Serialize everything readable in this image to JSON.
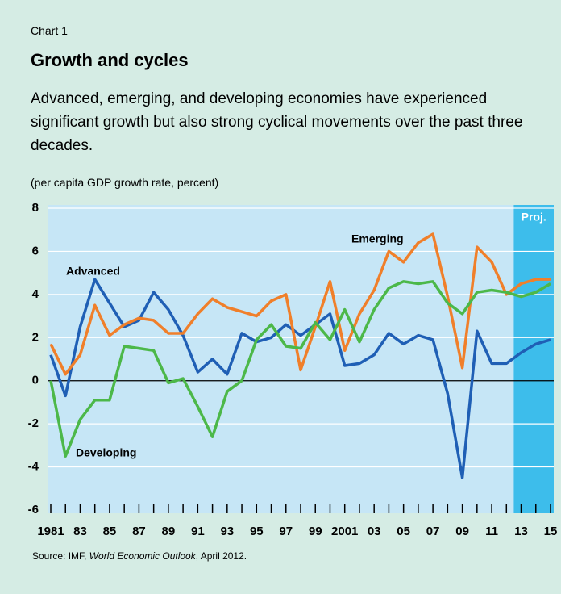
{
  "chart_data": {
    "type": "line",
    "kicker": "Chart 1",
    "title": "Growth and cycles",
    "subtitle": "Advanced, emerging, and developing economies have experienced significant growth but also strong cyclical movements over the past three decades.",
    "y_label": "(per capita GDP growth rate, percent)",
    "source": [
      "Source: IMF, ",
      "World Economic Outlook",
      ", April 2012."
    ],
    "projection_label": "Proj.",
    "projection_start": 2013,
    "x": [
      1981,
      1982,
      1983,
      1984,
      1985,
      1986,
      1987,
      1988,
      1989,
      1990,
      1991,
      1992,
      1993,
      1994,
      1995,
      1996,
      1997,
      1998,
      1999,
      2000,
      2001,
      2002,
      2003,
      2004,
      2005,
      2006,
      2007,
      2008,
      2009,
      2010,
      2011,
      2012,
      2013,
      2014,
      2015
    ],
    "xlim": [
      1981,
      2015
    ],
    "xticks": [
      {
        "value": 1981,
        "label": "1981"
      },
      {
        "value": 1983,
        "label": "83"
      },
      {
        "value": 1985,
        "label": "85"
      },
      {
        "value": 1987,
        "label": "87"
      },
      {
        "value": 1989,
        "label": "89"
      },
      {
        "value": 1991,
        "label": "91"
      },
      {
        "value": 1993,
        "label": "93"
      },
      {
        "value": 1995,
        "label": "95"
      },
      {
        "value": 1997,
        "label": "97"
      },
      {
        "value": 1999,
        "label": "99"
      },
      {
        "value": 2001,
        "label": "2001"
      },
      {
        "value": 2003,
        "label": "03"
      },
      {
        "value": 2005,
        "label": "05"
      },
      {
        "value": 2007,
        "label": "07"
      },
      {
        "value": 2009,
        "label": "09"
      },
      {
        "value": 2011,
        "label": "11"
      },
      {
        "value": 2013,
        "label": "13"
      },
      {
        "value": 2015,
        "label": "15"
      }
    ],
    "ylim": [
      -6,
      8
    ],
    "yticks": [
      -6,
      -4,
      -2,
      0,
      2,
      4,
      6,
      8
    ],
    "grid": true,
    "series": [
      {
        "name": "Advanced",
        "color": "#1f5fb5",
        "values": [
          1.2,
          -0.7,
          2.5,
          4.7,
          3.6,
          2.5,
          2.8,
          4.1,
          3.3,
          2.1,
          0.4,
          1.0,
          0.3,
          2.2,
          1.8,
          2.0,
          2.6,
          2.1,
          2.6,
          3.1,
          0.7,
          0.8,
          1.2,
          2.2,
          1.7,
          2.1,
          1.9,
          -0.6,
          -4.5,
          2.3,
          0.8,
          0.8,
          1.3,
          1.7,
          1.9
        ]
      },
      {
        "name": "Emerging",
        "color": "#f07f2a",
        "values": [
          1.7,
          0.3,
          1.2,
          3.5,
          2.1,
          2.6,
          2.9,
          2.8,
          2.2,
          2.2,
          3.1,
          3.8,
          3.4,
          3.2,
          3.0,
          3.7,
          4.0,
          0.5,
          2.5,
          4.6,
          1.4,
          3.1,
          4.2,
          6.0,
          5.5,
          6.4,
          6.8,
          3.9,
          0.6,
          6.2,
          5.5,
          4.0,
          4.5,
          4.7,
          4.7
        ]
      },
      {
        "name": "Developing",
        "color": "#4cb849",
        "values": [
          0.0,
          -3.5,
          -1.8,
          -0.9,
          -0.9,
          1.6,
          1.5,
          1.4,
          -0.1,
          0.1,
          -1.2,
          -2.6,
          -0.5,
          0.0,
          1.9,
          2.6,
          1.6,
          1.5,
          2.7,
          1.9,
          3.3,
          1.8,
          3.3,
          4.3,
          4.6,
          4.5,
          4.6,
          3.6,
          3.1,
          4.1,
          4.2,
          4.1,
          3.9,
          4.1,
          4.5
        ]
      }
    ]
  }
}
